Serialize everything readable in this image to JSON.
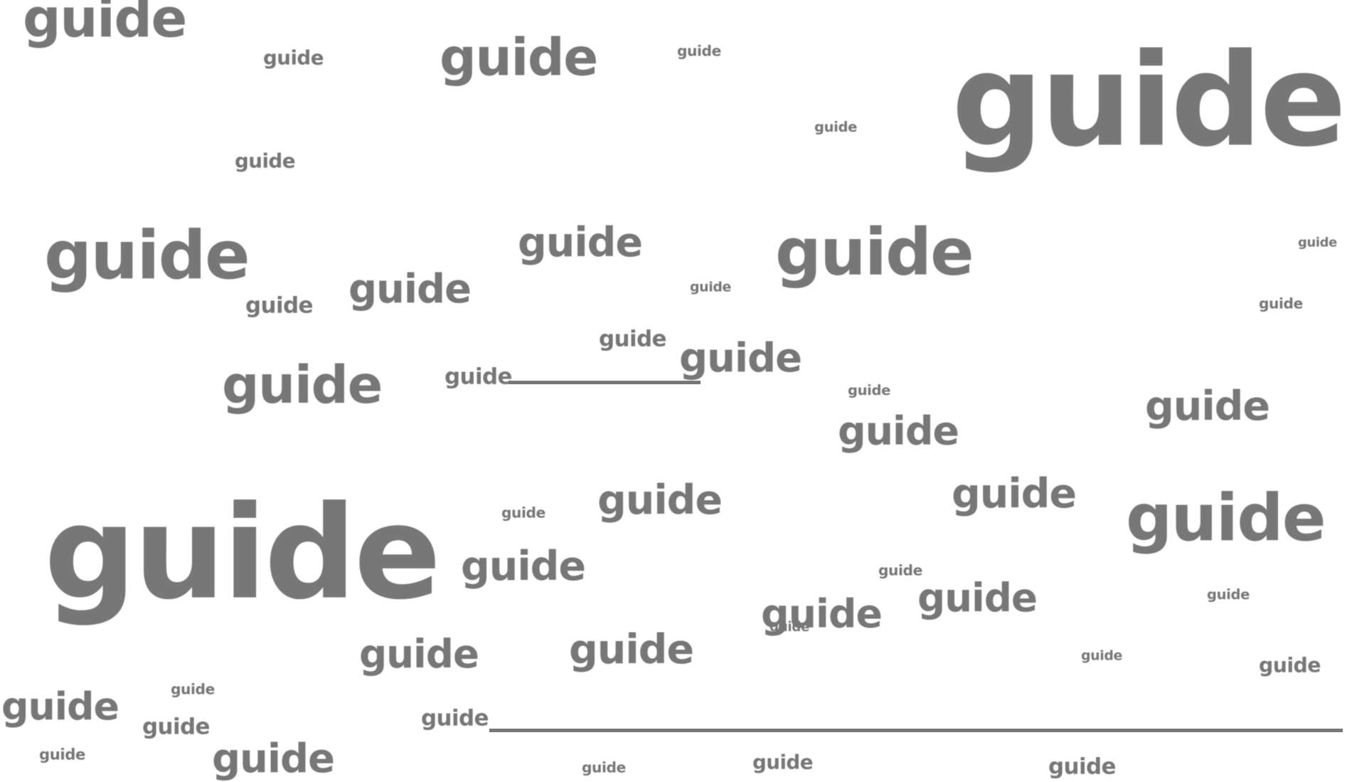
{
  "word": "guide",
  "text_color": "#777777",
  "background": "#ffffff"
}
